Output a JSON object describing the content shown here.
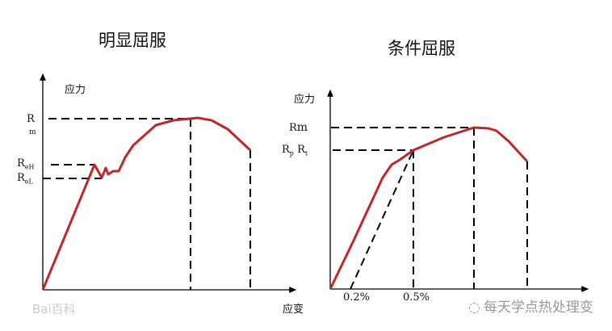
{
  "left": {
    "title": "明显屈服",
    "y_label": "应力",
    "x_label": "应变",
    "rm": {
      "r": "R",
      "sub": "m"
    },
    "reh": {
      "r": "R",
      "sub": "eH"
    },
    "rel": {
      "r": "R",
      "sub": "eL"
    }
  },
  "right": {
    "title": "条件屈服",
    "y_label": "应力",
    "rm": {
      "r": "R",
      "sub": "m"
    },
    "rp": {
      "r": "R",
      "sub": "p"
    },
    "rt": {
      "r": "R",
      "sub": "t"
    },
    "tick_02": "0.2%",
    "tick_05": "0.5%"
  },
  "watermarks": {
    "baidu": "Bai百科",
    "wechat": "每天学点热处理变"
  },
  "colors": {
    "curve": "#c0262b",
    "lines": "#000000"
  }
}
